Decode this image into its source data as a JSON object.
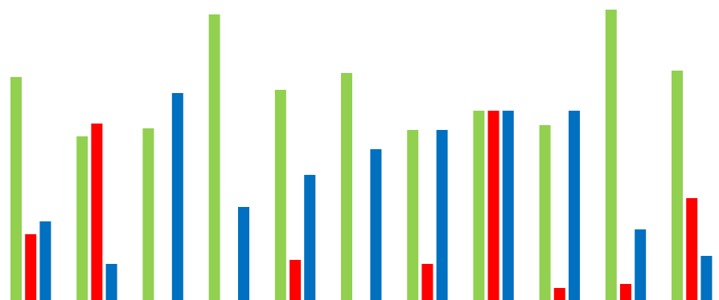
{
  "chart_data": {
    "type": "bar",
    "title": "",
    "xlabel": "",
    "ylabel": "",
    "ylim": [
      0,
      362
    ],
    "grid": false,
    "legend": "none",
    "categories": [
      "",
      "",
      "",
      "",
      "",
      "",
      "",
      "",
      "",
      "",
      ""
    ],
    "series": [
      {
        "color": "#92d050",
        "values": [
          278,
          204,
          214,
          356,
          262,
          283,
          212,
          236,
          218,
          362,
          286
        ]
      },
      {
        "color": "#ff0000",
        "values": [
          82,
          220,
          0,
          0,
          50,
          0,
          45,
          236,
          15,
          20,
          127
        ]
      },
      {
        "color": "#0070c0",
        "values": [
          98,
          45,
          258,
          116,
          156,
          188,
          212,
          236,
          236,
          88,
          55
        ]
      }
    ]
  }
}
